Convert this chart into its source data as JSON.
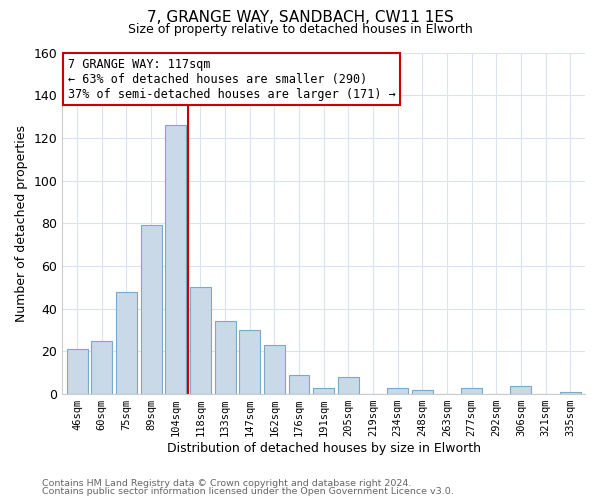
{
  "title": "7, GRANGE WAY, SANDBACH, CW11 1ES",
  "subtitle": "Size of property relative to detached houses in Elworth",
  "xlabel": "Distribution of detached houses by size in Elworth",
  "ylabel": "Number of detached properties",
  "bar_labels": [
    "46sqm",
    "60sqm",
    "75sqm",
    "89sqm",
    "104sqm",
    "118sqm",
    "133sqm",
    "147sqm",
    "162sqm",
    "176sqm",
    "191sqm",
    "205sqm",
    "219sqm",
    "234sqm",
    "248sqm",
    "263sqm",
    "277sqm",
    "292sqm",
    "306sqm",
    "321sqm",
    "335sqm"
  ],
  "bar_values": [
    21,
    25,
    48,
    79,
    126,
    50,
    34,
    30,
    23,
    9,
    3,
    8,
    0,
    3,
    2,
    0,
    3,
    0,
    4,
    0,
    1
  ],
  "bar_color": "#c9d9e8",
  "bar_edge_color": "#7aaac8",
  "vline_x_index": 5,
  "vline_color": "#cc0000",
  "ylim": [
    0,
    160
  ],
  "yticks": [
    0,
    20,
    40,
    60,
    80,
    100,
    120,
    140,
    160
  ],
  "annotation_title": "7 GRANGE WAY: 117sqm",
  "annotation_line1": "← 63% of detached houses are smaller (290)",
  "annotation_line2": "37% of semi-detached houses are larger (171) →",
  "annotation_box_edge": "#cc0000",
  "footer_line1": "Contains HM Land Registry data © Crown copyright and database right 2024.",
  "footer_line2": "Contains public sector information licensed under the Open Government Licence v3.0.",
  "bg_color": "#ffffff",
  "plot_bg_color": "#ffffff",
  "grid_color": "#d8e4f0"
}
